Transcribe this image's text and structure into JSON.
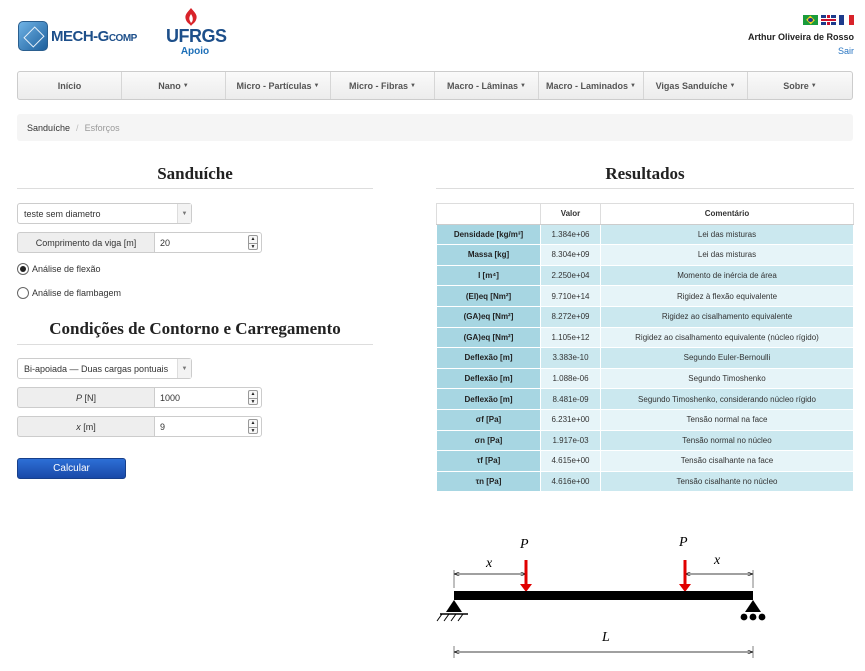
{
  "header": {
    "logo_main": "MECH-G",
    "logo_sub": "COMP",
    "ufrgs": "UFRGS",
    "apoio": "Apoio",
    "user_name": "Arthur Oliveira de Rosso",
    "logout": "Sair",
    "flags": [
      "flag-brazil-icon",
      "flag-uk-icon",
      "flag-france-icon"
    ]
  },
  "nav": {
    "items": [
      {
        "label": "Início",
        "caret": false
      },
      {
        "label": "Nano",
        "caret": true
      },
      {
        "label": "Micro - Partículas",
        "caret": true
      },
      {
        "label": "Micro - Fibras",
        "caret": true
      },
      {
        "label": "Macro - Lâminas",
        "caret": true
      },
      {
        "label": "Macro - Laminados",
        "caret": true
      },
      {
        "label": "Vigas Sanduíche",
        "caret": true
      },
      {
        "label": "Sobre",
        "caret": true
      }
    ]
  },
  "breadcrumb": {
    "parent": "Sanduíche",
    "separator": "/",
    "current": "Esforços"
  },
  "left": {
    "title": "Sanduíche",
    "material_select": "teste sem diametro",
    "length_label": "Comprimento da viga [m]",
    "length_value": "20",
    "radio_flexao": "Análise de flexão",
    "radio_flambagem": "Análise de flambagem",
    "conditions_title": "Condições de Contorno e Carregamento",
    "support_select": "Bi-apoiada — Duas cargas pontuais",
    "p_label": "P",
    "p_unit": "[N]",
    "p_value": "1000",
    "x_label": "x",
    "x_unit": "[m]",
    "x_value": "9",
    "calc_button": "Calcular"
  },
  "results": {
    "title": "Resultados",
    "headers": [
      "",
      "Valor",
      "Comentário"
    ],
    "rows": [
      {
        "prop": "Densidade [kg/m³]",
        "value": "1.384e+06",
        "comment": "Lei das misturas"
      },
      {
        "prop": "Massa [kg]",
        "value": "8.304e+09",
        "comment": "Lei das misturas"
      },
      {
        "prop": "I [m⁴]",
        "value": "2.250e+04",
        "comment": "Momento de inércia de área"
      },
      {
        "prop": "(EI)eq [Nm²]",
        "value": "9.710e+14",
        "comment": "Rigidez à flexão equivalente"
      },
      {
        "prop": "(GA)eq [Nm²]",
        "value": "8.272e+09",
        "comment": "Rigidez ao cisalhamento equivalente"
      },
      {
        "prop": "(GA)eq [Nm²]",
        "value": "1.105e+12",
        "comment": "Rigidez ao cisalhamento equivalente (núcleo rígido)"
      },
      {
        "prop": "Deflexão [m]",
        "value": "3.383e-10",
        "comment": "Segundo Euler-Bernoulli"
      },
      {
        "prop": "Deflexão [m]",
        "value": "1.088e-06",
        "comment": "Segundo Timoshenko"
      },
      {
        "prop": "Deflexão [m]",
        "value": "8.481e-09",
        "comment": "Segundo Timoshenko, considerando núcleo rígido"
      },
      {
        "prop": "σf [Pa]",
        "value": "6.231e+00",
        "comment": "Tensão normal na face"
      },
      {
        "prop": "σn [Pa]",
        "value": "1.917e-03",
        "comment": "Tensão normal no núcleo"
      },
      {
        "prop": "τf [Pa]",
        "value": "4.615e+00",
        "comment": "Tensão cisalhante na face"
      },
      {
        "prop": "τn [Pa]",
        "value": "4.616e+00",
        "comment": "Tensão cisalhante no núcleo"
      }
    ]
  },
  "diagram": {
    "load_label_1": "P",
    "load_label_2": "P",
    "dist_label_1": "x",
    "dist_label_2": "x",
    "span_label": "L",
    "load_color": "#e00000"
  }
}
